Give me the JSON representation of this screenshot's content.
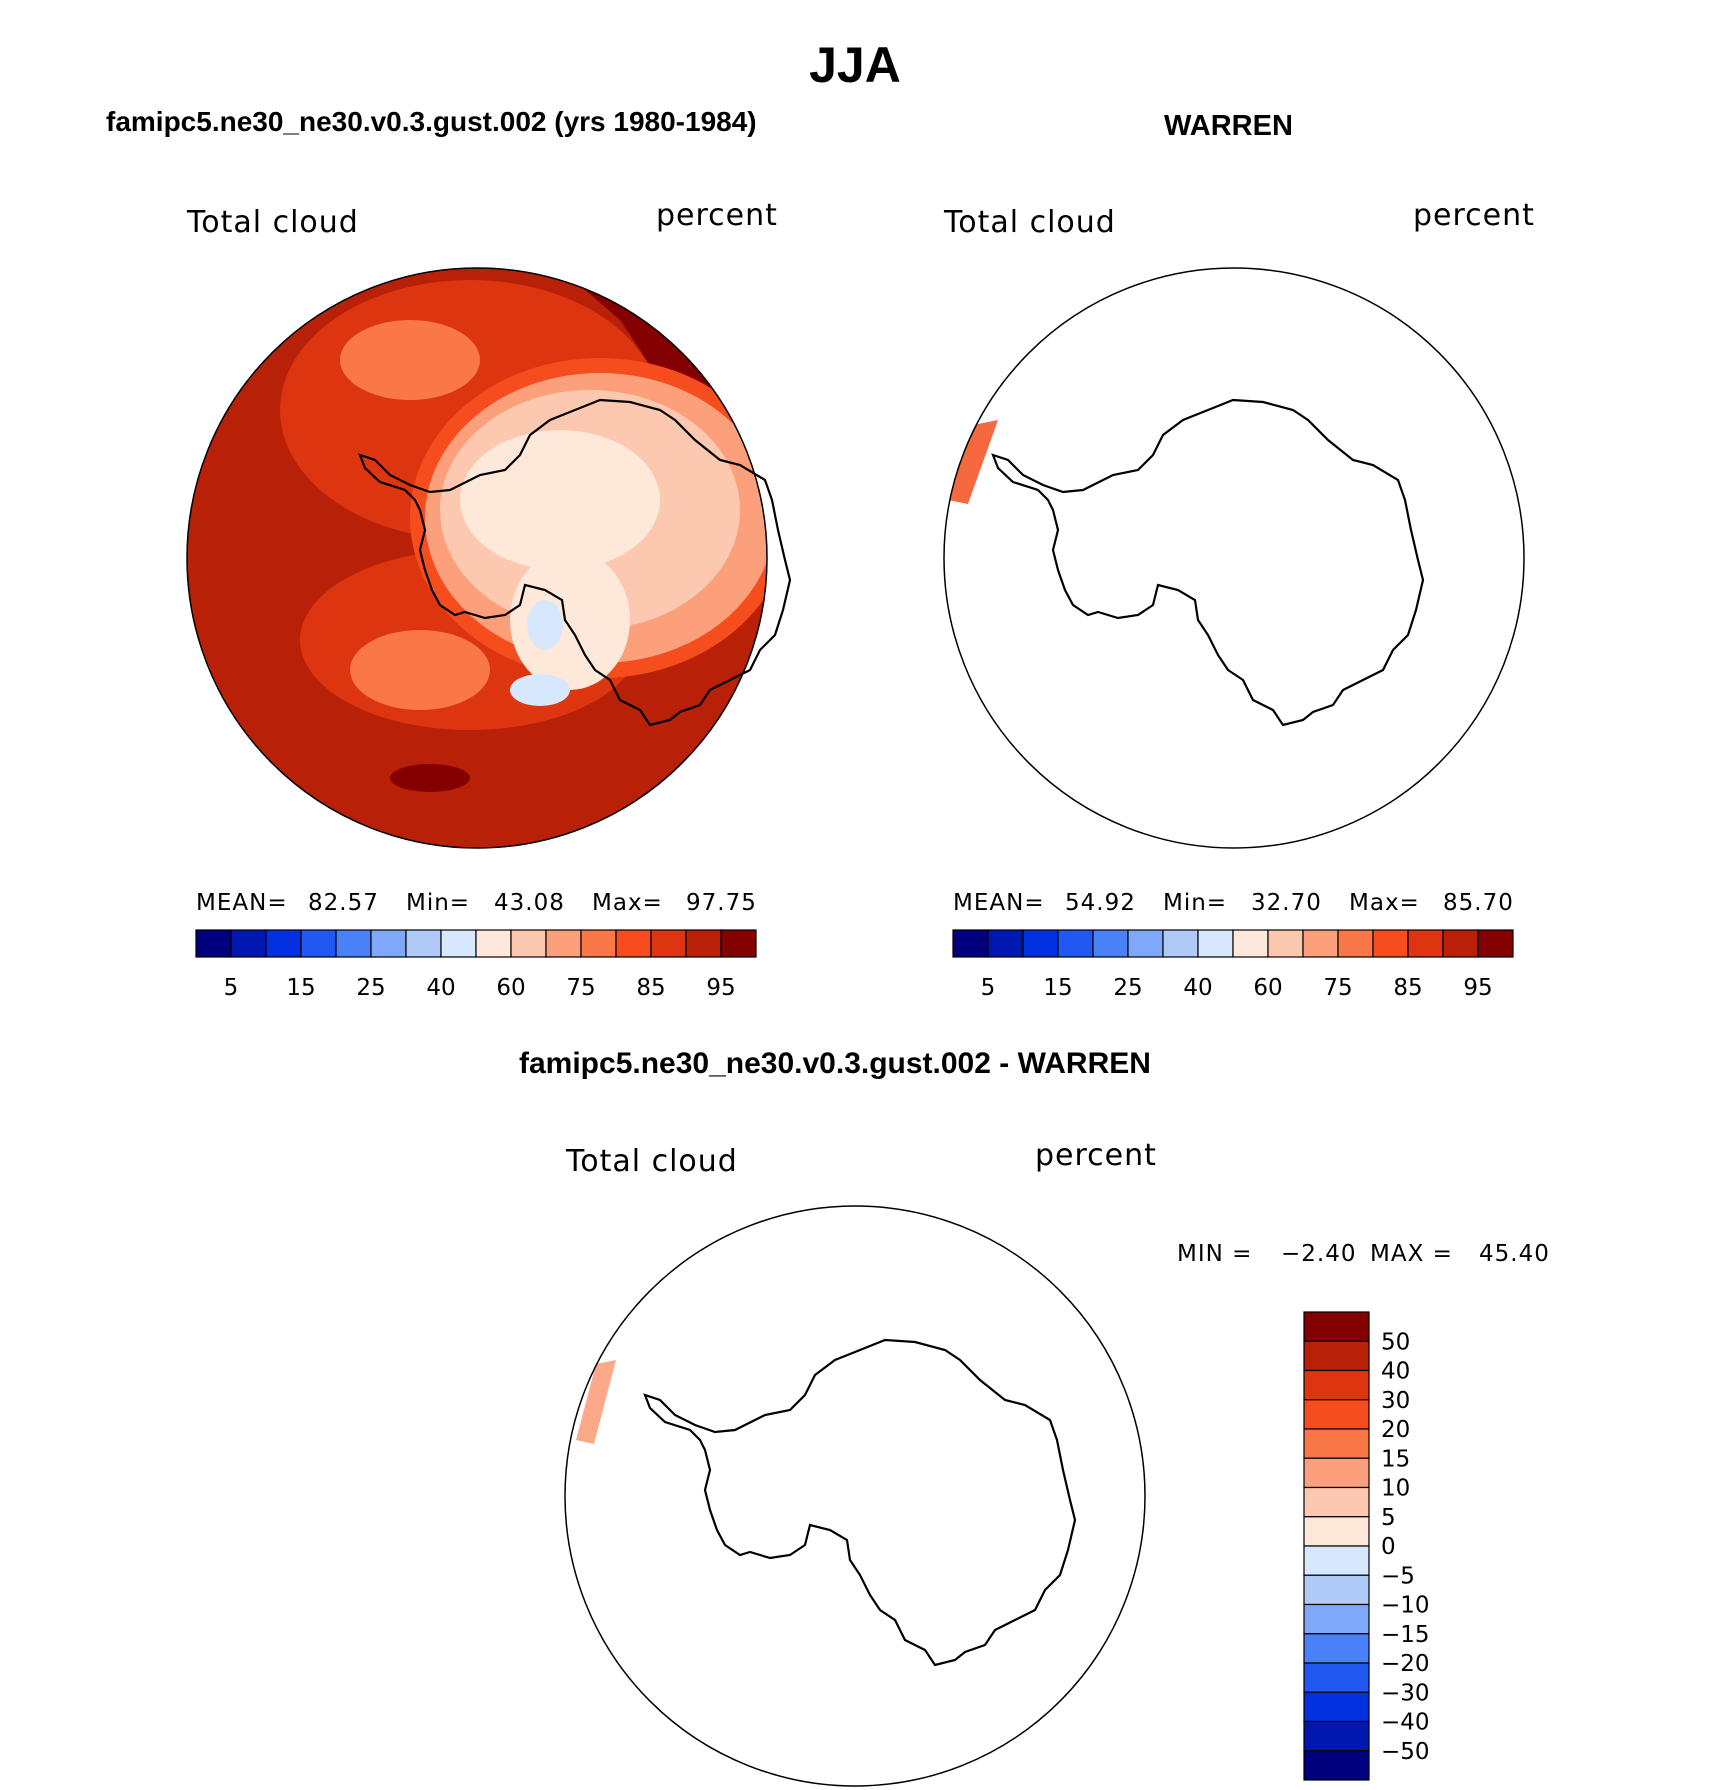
{
  "title": "JJA",
  "panels": {
    "model": {
      "case": "famipc5.ne30_ne30.v0.3.gust.002 (yrs 1980-1984)",
      "variable": "Total cloud",
      "units": "percent",
      "mean_label": "MEAN=",
      "mean": "82.57",
      "min_label": "Min=",
      "min": "43.08",
      "max_label": "Max=",
      "max": "97.75"
    },
    "obs": {
      "case": "WARREN",
      "variable": "Total cloud",
      "units": "percent",
      "mean_label": "MEAN=",
      "mean": "54.92",
      "min_label": "Min=",
      "min": "32.70",
      "max_label": "Max=",
      "max": "85.70"
    },
    "diff": {
      "case": "famipc5.ne30_ne30.v0.3.gust.002 - WARREN",
      "variable": "Total cloud",
      "units": "percent",
      "min_label": "MIN =",
      "min": "−2.40",
      "max_label": "MAX =",
      "max": "45.40"
    }
  },
  "colorbar_abs": {
    "colors": [
      "#00007f",
      "#0018b0",
      "#0030e0",
      "#2058f0",
      "#4a80f8",
      "#80a8fa",
      "#b0caf8",
      "#d8e8fc",
      "#fde8da",
      "#fcc8b0",
      "#fca07c",
      "#fa7848",
      "#f54d1e",
      "#dd3510",
      "#b82008",
      "#840000"
    ],
    "labels": [
      "5",
      "15",
      "25",
      "40",
      "60",
      "75",
      "85",
      "95"
    ]
  },
  "colorbar_diff": {
    "colors": [
      "#840000",
      "#b82008",
      "#dd3510",
      "#f54d1e",
      "#fa7848",
      "#fca07c",
      "#fcc8b0",
      "#fde8da",
      "#d8e8fc",
      "#b0caf8",
      "#80a8fa",
      "#4a80f8",
      "#2058f0",
      "#0030e0",
      "#0018b0",
      "#00007f"
    ],
    "labels": [
      "50",
      "40",
      "30",
      "20",
      "15",
      "10",
      "5",
      "0",
      "−5",
      "−10",
      "−15",
      "−20",
      "−30",
      "−40",
      "−50"
    ]
  }
}
